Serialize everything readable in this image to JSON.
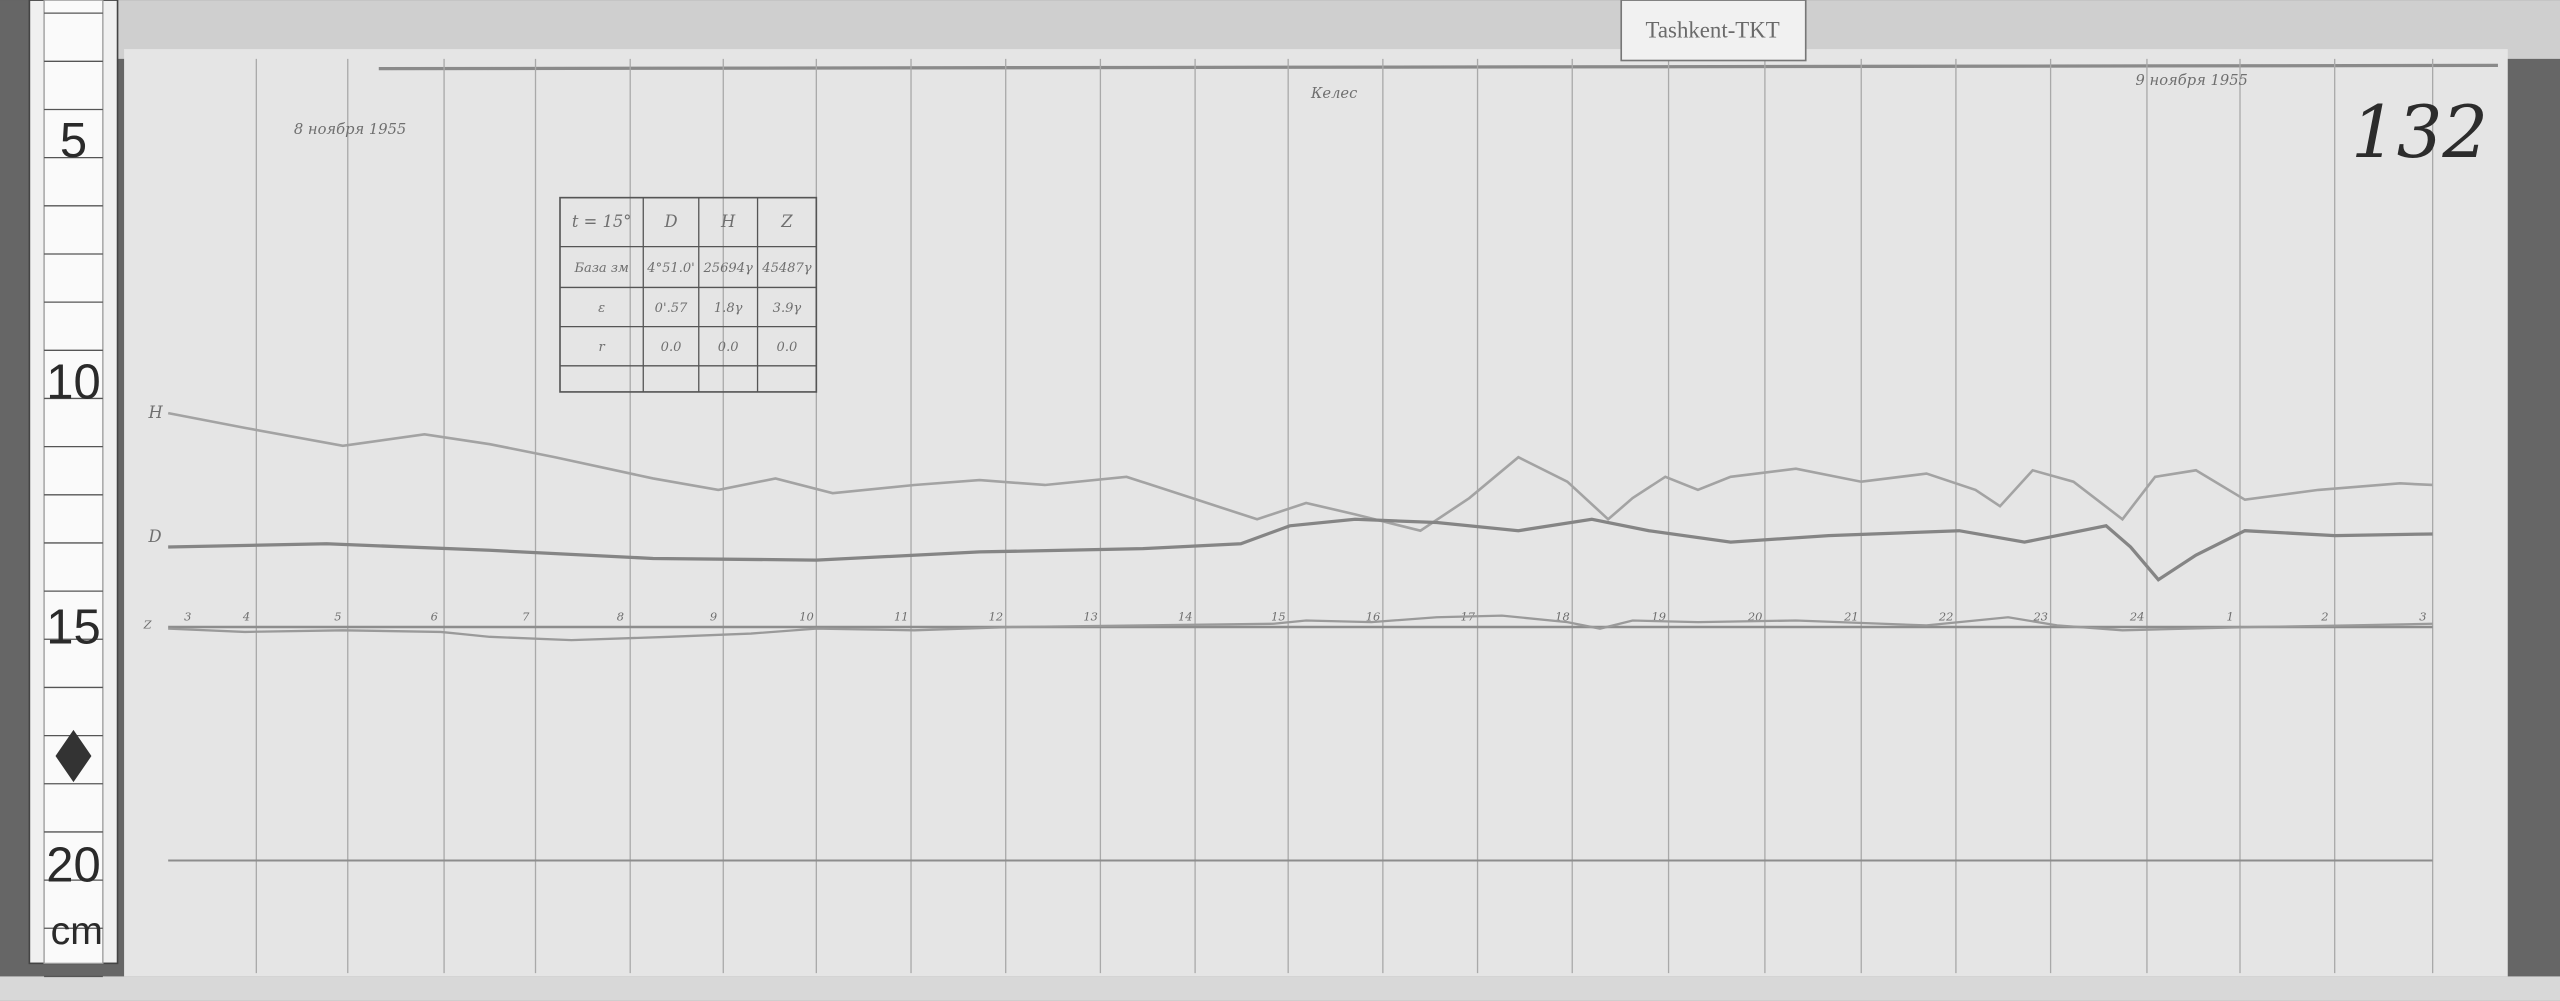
{
  "station_tag": "Tashkent-TKT",
  "sheet_number": "132",
  "location_note": "Келес",
  "date_start": "8 ноября 1955",
  "date_end": "9 ноября 1955",
  "trace_labels": {
    "h": "Н",
    "d": "D",
    "z": "Z"
  },
  "ruler": {
    "marks": [
      "5",
      "10",
      "15",
      "20"
    ],
    "unit": "cm"
  },
  "hour_labels": [
    "3",
    "4",
    "5",
    "6",
    "7",
    "8",
    "9",
    "10",
    "11",
    "12",
    "13",
    "14",
    "15",
    "16",
    "17",
    "18",
    "19",
    "20",
    "21",
    "22",
    "23",
    "24",
    "1",
    "2",
    "3"
  ],
  "table": {
    "header": [
      "t = 15°",
      "D",
      "H",
      "Z"
    ],
    "rows": [
      [
        "База зм",
        "4°51.0'",
        "25694γ",
        "45487γ"
      ],
      [
        "ε",
        "0'.57",
        "1.8γ",
        "3.9γ"
      ],
      [
        "r",
        "0.0",
        "0.0",
        "0.0"
      ],
      [
        "",
        "",
        "",
        ""
      ]
    ]
  },
  "colors": {
    "paper": "#e6e6e6",
    "trace": "#8a8a8a",
    "background": "#5f5f5f"
  }
}
